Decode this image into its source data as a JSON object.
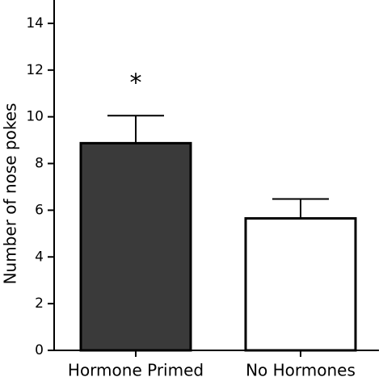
{
  "chart_data": {
    "type": "bar",
    "y_label": "Number of nose pokes",
    "categories": [
      "Hormone Primed",
      "No Hormones"
    ],
    "values": [
      8.87,
      5.65
    ],
    "errors": [
      1.18,
      0.83
    ],
    "colors": [
      "#3a3a3a",
      "#ffffff"
    ],
    "annotation": "*",
    "ylim": [
      0,
      15
    ],
    "yticks": [
      0,
      2,
      4,
      6,
      8,
      10,
      12,
      14
    ],
    "grid": false
  }
}
